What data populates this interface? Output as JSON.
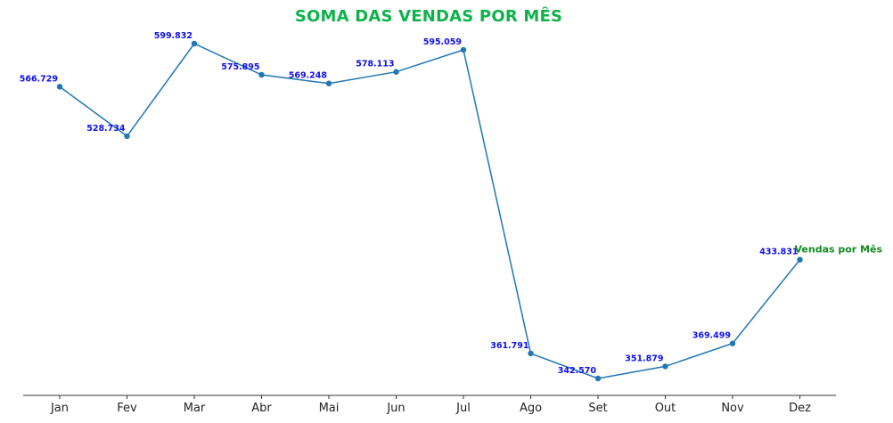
{
  "chart_data": {
    "type": "line",
    "title": "SOMA DAS VENDAS POR MÊS",
    "xlabel": "",
    "ylabel": "",
    "categories": [
      "Jan",
      "Fev",
      "Mar",
      "Abr",
      "Mai",
      "Jun",
      "Jul",
      "Ago",
      "Set",
      "Out",
      "Nov",
      "Dez"
    ],
    "series": [
      {
        "name": "Vendas por Mês",
        "values": [
          566729,
          528734,
          599832,
          575895,
          569248,
          578113,
          595059,
          361791,
          342570,
          351879,
          369499,
          433831
        ],
        "labels": [
          "566.729",
          "528.734",
          "599.832",
          "575.895",
          "569.248",
          "578.113",
          "595.059",
          "361.791",
          "342.570",
          "351.879",
          "369.499",
          "433.831"
        ]
      }
    ],
    "y_axis_visible": false,
    "grid": false,
    "legend": "none",
    "colors": {
      "title": "#0fb24a",
      "line": "#1f77b4",
      "data_labels": "#1010ee",
      "series_label": "#138a1e",
      "axis": "#333333"
    }
  }
}
